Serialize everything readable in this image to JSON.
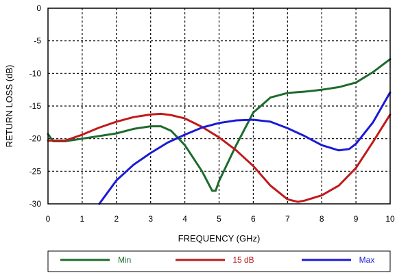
{
  "chart_data": {
    "type": "line",
    "xlabel": "FREQUENCY (GHz)",
    "ylabel": "RETURN LOSS (dB)",
    "xlim": [
      0,
      10
    ],
    "ylim": [
      -30,
      0
    ],
    "x_ticks": [
      "0",
      "1",
      "2",
      "3",
      "4",
      "5",
      "6",
      "7",
      "8",
      "9",
      "10"
    ],
    "y_ticks": [
      "0",
      "-5",
      "-10",
      "-15",
      "-20",
      "-25",
      "-30"
    ],
    "grid": true,
    "legend_position": "bottom",
    "series": [
      {
        "name": "Min",
        "color": "#1e6b2e",
        "points": [
          [
            0,
            -19.3
          ],
          [
            0.15,
            -20.4
          ],
          [
            0.5,
            -20.4
          ],
          [
            1,
            -20
          ],
          [
            2,
            -19.2
          ],
          [
            2.5,
            -18.5
          ],
          [
            3,
            -18.1
          ],
          [
            3.3,
            -18.1
          ],
          [
            3.6,
            -18.8
          ],
          [
            4,
            -21
          ],
          [
            4.5,
            -25
          ],
          [
            4.8,
            -28
          ],
          [
            4.9,
            -28
          ],
          [
            5,
            -26.5
          ],
          [
            5.5,
            -21
          ],
          [
            6,
            -16
          ],
          [
            6.5,
            -13.7
          ],
          [
            7,
            -13
          ],
          [
            7.5,
            -12.8
          ],
          [
            8,
            -12.5
          ],
          [
            8.5,
            -12.1
          ],
          [
            9,
            -11.4
          ],
          [
            9.5,
            -9.8
          ],
          [
            10,
            -7.8
          ]
        ]
      },
      {
        "name": "15 dB",
        "color": "#c0191a",
        "points": [
          [
            0,
            -20.3
          ],
          [
            0.5,
            -20.3
          ],
          [
            1,
            -19.4
          ],
          [
            1.5,
            -18.3
          ],
          [
            2,
            -17.4
          ],
          [
            2.5,
            -16.7
          ],
          [
            3,
            -16.3
          ],
          [
            3.3,
            -16.2
          ],
          [
            3.6,
            -16.4
          ],
          [
            4,
            -16.9
          ],
          [
            4.5,
            -18.2
          ],
          [
            5,
            -19.8
          ],
          [
            5.5,
            -21.8
          ],
          [
            6,
            -24.2
          ],
          [
            6.5,
            -27.2
          ],
          [
            7,
            -29.3
          ],
          [
            7.3,
            -29.7
          ],
          [
            7.5,
            -29.5
          ],
          [
            8,
            -28.7
          ],
          [
            8.5,
            -27.2
          ],
          [
            9,
            -24.5
          ],
          [
            9.5,
            -20.5
          ],
          [
            10,
            -16.3
          ]
        ]
      },
      {
        "name": "Max",
        "color": "#1a1ad6",
        "points": [
          [
            1.5,
            -30
          ],
          [
            2,
            -26.4
          ],
          [
            2.5,
            -24
          ],
          [
            3,
            -22.2
          ],
          [
            3.5,
            -20.6
          ],
          [
            4,
            -19.4
          ],
          [
            4.5,
            -18.3
          ],
          [
            5,
            -17.6
          ],
          [
            5.5,
            -17.2
          ],
          [
            6,
            -17.1
          ],
          [
            6.5,
            -17.4
          ],
          [
            7,
            -18.4
          ],
          [
            7.5,
            -19.6
          ],
          [
            8,
            -21
          ],
          [
            8.5,
            -21.8
          ],
          [
            8.8,
            -21.6
          ],
          [
            9,
            -20.8
          ],
          [
            9.5,
            -17.5
          ],
          [
            10,
            -12.9
          ]
        ]
      }
    ]
  }
}
